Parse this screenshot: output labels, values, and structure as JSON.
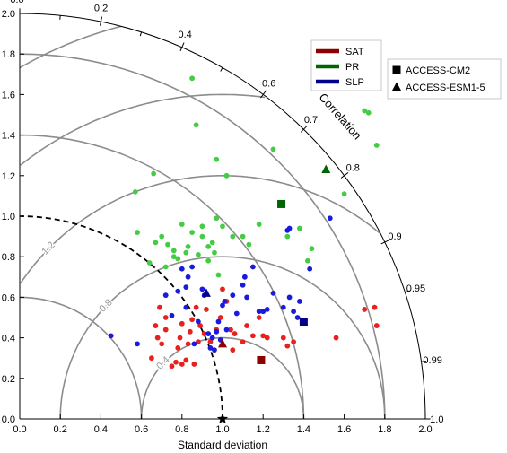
{
  "chart_data": {
    "type": "scatter",
    "subtype": "taylor-diagram",
    "xlabel": "Standard deviation",
    "ylabel": "",
    "arc_label": "Correlation",
    "xlim": [
      0,
      2.0
    ],
    "ylim": [
      0,
      2.0
    ],
    "x_ticks": [
      "0.0",
      "0.2",
      "0.4",
      "0.6",
      "0.8",
      "1.0",
      "1.2",
      "1.4",
      "1.6",
      "1.8",
      "2.0"
    ],
    "y_ticks": [
      "0.0",
      "0.2",
      "0.4",
      "0.6",
      "0.8",
      "1.0",
      "1.2",
      "1.4",
      "1.6",
      "1.8",
      "2.0"
    ],
    "correlation_ticks": [
      "0.0",
      "0.2",
      "0.4",
      "0.6",
      "0.7",
      "0.8",
      "0.9",
      "0.95",
      "0.99",
      "1.0"
    ],
    "rms_contours": [
      "0.4",
      "0.8",
      "1.2",
      "1.6",
      "2.0"
    ],
    "reference_std": 1.0,
    "legend_variables": [
      {
        "name": "SAT",
        "color": "#8b0000"
      },
      {
        "name": "PR",
        "color": "#006400"
      },
      {
        "name": "SLP",
        "color": "#00008b"
      }
    ],
    "legend_models": [
      {
        "name": "ACCESS-CM2",
        "marker": "square"
      },
      {
        "name": "ACCESS-ESM1-5",
        "marker": "triangle"
      }
    ],
    "model_points": [
      {
        "variable": "SAT",
        "model": "ACCESS-CM2",
        "x": 1.19,
        "y": 0.29
      },
      {
        "variable": "SAT",
        "model": "ACCESS-ESM1-5",
        "x": 1.0,
        "y": 0.37
      },
      {
        "variable": "PR",
        "model": "ACCESS-CM2",
        "x": 1.29,
        "y": 1.06
      },
      {
        "variable": "PR",
        "model": "ACCESS-ESM1-5",
        "x": 1.51,
        "y": 1.23
      },
      {
        "variable": "SLP",
        "model": "ACCESS-CM2",
        "x": 1.4,
        "y": 0.48
      },
      {
        "variable": "SLP",
        "model": "ACCESS-ESM1-5",
        "x": 0.92,
        "y": 0.62
      }
    ],
    "ensemble_points": {
      "SAT": {
        "color": "#e8201e",
        "points": [
          [
            0.65,
            0.3
          ],
          [
            0.67,
            0.46
          ],
          [
            0.68,
            0.4
          ],
          [
            0.69,
            0.55
          ],
          [
            0.7,
            0.37
          ],
          [
            0.72,
            0.44
          ],
          [
            0.75,
            0.26
          ],
          [
            0.77,
            0.28
          ],
          [
            0.78,
            0.35
          ],
          [
            0.79,
            0.4
          ],
          [
            0.8,
            0.27
          ],
          [
            0.8,
            0.47
          ],
          [
            0.82,
            0.29
          ],
          [
            0.83,
            0.37
          ],
          [
            0.84,
            0.43
          ],
          [
            0.85,
            0.49
          ],
          [
            0.86,
            0.27
          ],
          [
            0.87,
            0.55
          ],
          [
            0.88,
            0.38
          ],
          [
            0.89,
            0.46
          ],
          [
            0.91,
            0.42
          ],
          [
            0.92,
            0.54
          ],
          [
            0.94,
            0.38
          ],
          [
            0.97,
            0.44
          ],
          [
            0.99,
            0.5
          ],
          [
            1.02,
            0.58
          ],
          [
            1.04,
            0.44
          ],
          [
            1.05,
            0.34
          ],
          [
            1.06,
            0.42
          ],
          [
            1.1,
            0.38
          ],
          [
            1.12,
            0.46
          ],
          [
            1.15,
            0.41
          ],
          [
            1.18,
            0.5
          ],
          [
            1.2,
            0.41
          ],
          [
            1.22,
            0.4
          ],
          [
            1.3,
            0.4
          ],
          [
            1.32,
            0.36
          ],
          [
            1.35,
            0.38
          ],
          [
            1.7,
            0.54
          ],
          [
            1.75,
            0.55
          ],
          [
            1.76,
            0.46
          ],
          [
            1.56,
            0.4
          ],
          [
            0.72,
            0.5
          ],
          [
            1.0,
            0.64
          ]
        ]
      },
      "PR": {
        "color": "#44cc44",
        "points": [
          [
            0.85,
            1.68
          ],
          [
            0.57,
            1.12
          ],
          [
            0.66,
            1.21
          ],
          [
            0.58,
            0.92
          ],
          [
            0.64,
            0.77
          ],
          [
            0.67,
            0.87
          ],
          [
            0.7,
            0.9
          ],
          [
            0.73,
            0.86
          ],
          [
            0.76,
            0.83
          ],
          [
            0.78,
            0.79
          ],
          [
            0.8,
            0.96
          ],
          [
            0.83,
            0.85
          ],
          [
            0.85,
            0.92
          ],
          [
            0.87,
            1.45
          ],
          [
            0.88,
            0.81
          ],
          [
            0.9,
            0.95
          ],
          [
            0.93,
            0.85
          ],
          [
            0.95,
            0.87
          ],
          [
            0.97,
            1.28
          ],
          [
            1.0,
            0.95
          ],
          [
            1.02,
            1.2
          ],
          [
            1.05,
            0.9
          ],
          [
            1.1,
            0.9
          ],
          [
            1.13,
            0.86
          ],
          [
            1.18,
            0.96
          ],
          [
            1.25,
            1.33
          ],
          [
            1.32,
            0.9
          ],
          [
            1.38,
            0.94
          ],
          [
            1.42,
            0.78
          ],
          [
            1.44,
            0.84
          ],
          [
            1.6,
            1.11
          ],
          [
            1.7,
            1.52
          ],
          [
            1.72,
            1.51
          ],
          [
            1.76,
            1.35
          ],
          [
            0.72,
            0.75
          ],
          [
            0.76,
            0.8
          ],
          [
            0.82,
            0.82
          ],
          [
            0.9,
            0.9
          ],
          [
            0.97,
            0.99
          ],
          [
            0.93,
            0.78
          ],
          [
            0.98,
            0.71
          ],
          [
            0.96,
            0.82
          ]
        ]
      },
      "SLP": {
        "color": "#1a1adc",
        "points": [
          [
            0.45,
            0.41
          ],
          [
            0.58,
            0.37
          ],
          [
            0.72,
            0.61
          ],
          [
            0.75,
            0.51
          ],
          [
            0.78,
            0.63
          ],
          [
            0.8,
            0.74
          ],
          [
            0.82,
            0.65
          ],
          [
            0.83,
            0.7
          ],
          [
            0.85,
            0.75
          ],
          [
            0.86,
            0.37
          ],
          [
            0.88,
            0.48
          ],
          [
            0.9,
            0.64
          ],
          [
            0.91,
            0.61
          ],
          [
            0.93,
            0.42
          ],
          [
            0.94,
            0.35
          ],
          [
            0.95,
            0.4
          ],
          [
            0.96,
            0.34
          ],
          [
            0.97,
            0.43
          ],
          [
            0.98,
            0.48
          ],
          [
            0.99,
            0.39
          ],
          [
            1.0,
            0.56
          ],
          [
            1.01,
            0.58
          ],
          [
            1.02,
            0.44
          ],
          [
            1.05,
            0.61
          ],
          [
            1.07,
            0.52
          ],
          [
            1.1,
            0.66
          ],
          [
            1.12,
            0.6
          ],
          [
            1.15,
            0.75
          ],
          [
            1.18,
            0.53
          ],
          [
            1.2,
            0.53
          ],
          [
            1.22,
            0.54
          ],
          [
            1.25,
            0.62
          ],
          [
            1.3,
            0.55
          ],
          [
            1.33,
            0.6
          ],
          [
            1.35,
            0.53
          ],
          [
            1.37,
            0.5
          ],
          [
            1.38,
            0.58
          ],
          [
            1.43,
            0.74
          ],
          [
            1.53,
            0.99
          ],
          [
            1.32,
            0.93
          ],
          [
            1.33,
            0.94
          ],
          [
            0.82,
            0.55
          ],
          [
            1.11,
            0.7
          ]
        ]
      }
    }
  }
}
